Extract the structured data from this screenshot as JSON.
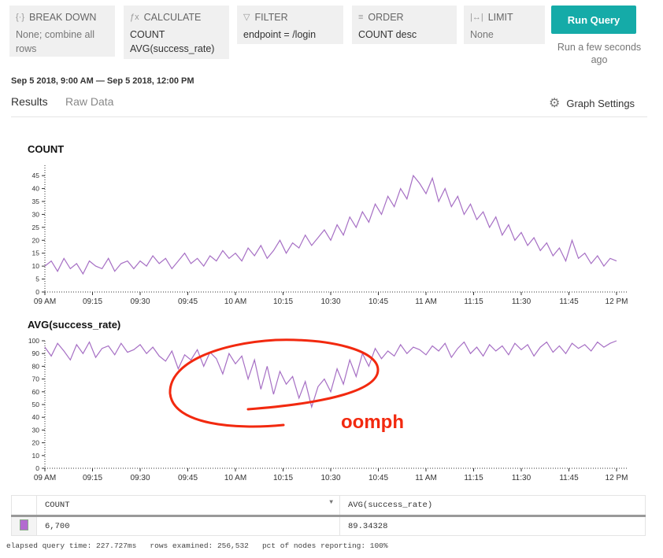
{
  "query": {
    "breakdown": {
      "label": "BREAK DOWN",
      "icon": "breakdown-icon",
      "value": "None; combine all rows"
    },
    "calculate": {
      "label": "CALCULATE",
      "icon": "function-icon",
      "values": [
        "COUNT",
        "AVG(success_rate)"
      ]
    },
    "filter": {
      "label": "FILTER",
      "icon": "filter-icon",
      "value": "endpoint = /login"
    },
    "order": {
      "label": "ORDER",
      "icon": "order-icon",
      "value": "COUNT desc"
    },
    "limit": {
      "label": "LIMIT",
      "icon": "limit-icon",
      "value": "None"
    },
    "run_label": "Run Query",
    "run_status": "Run a few seconds ago",
    "accent": "#15aba8"
  },
  "time_range": "Sep 5 2018, 9:00 AM — Sep 5 2018, 12:00 PM",
  "tabs": [
    {
      "label": "Results",
      "active": true
    },
    {
      "label": "Raw Data",
      "active": false
    }
  ],
  "graph_settings": "Graph Settings",
  "annotation": {
    "text": "oomph",
    "color": "#f2290f"
  },
  "chart_data": [
    {
      "type": "line",
      "title": "COUNT",
      "color": "#a66fc4",
      "x_ticks": [
        "09 AM",
        "09:15",
        "09:30",
        "09:45",
        "10 AM",
        "10:15",
        "10:30",
        "10:45",
        "11 AM",
        "11:15",
        "11:30",
        "11:45",
        "12 PM"
      ],
      "y_ticks": [
        0,
        5,
        10,
        15,
        20,
        25,
        30,
        35,
        40,
        45
      ],
      "ylim": [
        0,
        49
      ],
      "x_range": [
        "9:00 AM",
        "12:00 PM"
      ],
      "x_step_minutes": 2,
      "values": [
        10,
        12,
        8,
        13,
        9,
        11,
        7,
        12,
        10,
        9,
        13,
        8,
        11,
        12,
        9,
        12,
        10,
        14,
        11,
        13,
        9,
        12,
        15,
        11,
        13,
        10,
        14,
        12,
        16,
        13,
        15,
        12,
        17,
        14,
        18,
        13,
        16,
        20,
        15,
        19,
        17,
        22,
        18,
        21,
        24,
        20,
        26,
        22,
        29,
        25,
        31,
        27,
        34,
        30,
        37,
        33,
        40,
        36,
        45,
        42,
        38,
        44,
        35,
        40,
        33,
        37,
        30,
        34,
        28,
        31,
        25,
        29,
        22,
        26,
        20,
        23,
        18,
        21,
        16,
        19,
        14,
        17,
        12,
        20,
        13,
        15,
        11,
        14,
        10,
        13,
        12
      ]
    },
    {
      "type": "line",
      "title": "AVG(success_rate)",
      "color": "#a66fc4",
      "x_ticks": [
        "09 AM",
        "09:15",
        "09:30",
        "09:45",
        "10 AM",
        "10:15",
        "10:30",
        "10:45",
        "11 AM",
        "11:15",
        "11:30",
        "11:45",
        "12 PM"
      ],
      "y_ticks": [
        0,
        10,
        20,
        30,
        40,
        50,
        60,
        70,
        80,
        90,
        100
      ],
      "ylim": [
        0,
        100
      ],
      "x_range": [
        "9:00 AM",
        "12:00 PM"
      ],
      "x_step_minutes": 2,
      "values": [
        95,
        88,
        98,
        92,
        85,
        97,
        90,
        99,
        87,
        94,
        96,
        89,
        98,
        91,
        93,
        97,
        90,
        95,
        88,
        84,
        92,
        78,
        89,
        85,
        93,
        80,
        91,
        86,
        74,
        90,
        82,
        88,
        70,
        85,
        62,
        80,
        58,
        76,
        66,
        72,
        55,
        68,
        48,
        64,
        70,
        60,
        78,
        66,
        85,
        72,
        90,
        80,
        94,
        86,
        92,
        88,
        97,
        90,
        95,
        93,
        89,
        96,
        92,
        98,
        87,
        94,
        99,
        90,
        95,
        88,
        97,
        92,
        96,
        89,
        98,
        93,
        97,
        88,
        95,
        99,
        91,
        96,
        90,
        98,
        94,
        97,
        92,
        99,
        95,
        98,
        100
      ]
    }
  ],
  "table": {
    "headers": [
      "COUNT",
      "AVG(success_rate)"
    ],
    "rows": [
      [
        "6,700",
        "89.34328"
      ]
    ]
  },
  "stats": "elapsed query time: 227.727ms   rows examined: 256,532   pct of nodes reporting: 100%"
}
